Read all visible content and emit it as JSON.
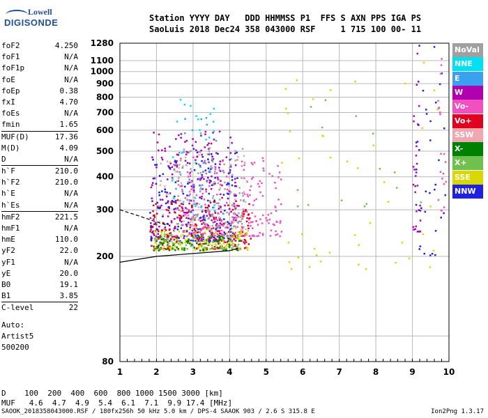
{
  "logo": {
    "line1": "Lowell",
    "line2": "DIGISONDE"
  },
  "header": {
    "row1": "Station YYYY DAY   DDD HHMMSS P1  FFS S AXN PPS IGA PS",
    "row2": "SaoLuis 2018 Dec24 358 043000 RSF     1 715 100 00- 11"
  },
  "params": [
    {
      "k": "foF2",
      "v": "4.250"
    },
    {
      "k": "foF1",
      "v": "N/A"
    },
    {
      "k": "foF1p",
      "v": "N/A"
    },
    {
      "k": "foE",
      "v": "N/A"
    },
    {
      "k": "foEp",
      "v": "0.38"
    },
    {
      "k": "fxI",
      "v": "4.70"
    },
    {
      "k": "foEs",
      "v": "N/A"
    },
    {
      "k": "fmin",
      "v": "1.65"
    },
    {
      "k": "MUF(D)",
      "v": "17.36",
      "sep": true
    },
    {
      "k": "M(D)",
      "v": "4.09"
    },
    {
      "k": "D",
      "v": "N/A"
    },
    {
      "k": "h`F",
      "v": "210.0",
      "sep": true
    },
    {
      "k": "h`F2",
      "v": "210.0"
    },
    {
      "k": "h`E",
      "v": "N/A"
    },
    {
      "k": "h`Es",
      "v": "N/A"
    },
    {
      "k": "hmF2",
      "v": "221.5",
      "sep": true
    },
    {
      "k": "hmF1",
      "v": "N/A"
    },
    {
      "k": "hmE",
      "v": "110.0"
    },
    {
      "k": "yF2",
      "v": "22.0"
    },
    {
      "k": "yF1",
      "v": "N/A"
    },
    {
      "k": "yE",
      "v": "20.0"
    },
    {
      "k": "B0",
      "v": "19.1"
    },
    {
      "k": "B1",
      "v": "3.85"
    },
    {
      "k": "C-level",
      "v": "22",
      "sep": true
    }
  ],
  "auto": {
    "l1": "Auto:",
    "l2": "Artist5",
    "l3": "500200"
  },
  "legend": [
    {
      "label": "NoVal",
      "color": "#a0a0a0"
    },
    {
      "label": "NNE",
      "color": "#00e0f0"
    },
    {
      "label": "E",
      "color": "#3aa0f0"
    },
    {
      "label": "W",
      "color": "#b000b0"
    },
    {
      "label": "Vo-",
      "color": "#f050c0"
    },
    {
      "label": "Vo+",
      "color": "#e00020"
    },
    {
      "label": "SSW",
      "color": "#f0a8b0"
    },
    {
      "label": "X-",
      "color": "#008000"
    },
    {
      "label": "X+",
      "color": "#70c050"
    },
    {
      "label": "SSE",
      "color": "#d8d800"
    },
    {
      "label": "NNW",
      "color": "#2020e0"
    }
  ],
  "chart_data": {
    "type": "scatter",
    "xlim": [
      1,
      10
    ],
    "ylim": [
      80,
      1280
    ],
    "y_scale": "log",
    "grid": true,
    "x_ticks": [
      1,
      2,
      3,
      4,
      5,
      6,
      7,
      8,
      9,
      10
    ],
    "y_ticks": [
      80,
      100,
      200,
      300,
      400,
      500,
      600,
      700,
      800,
      900,
      1000,
      1100,
      1280
    ],
    "y_tick_labels": [
      "80",
      "",
      "200",
      "300",
      "400",
      "500",
      "600",
      "700",
      "800",
      "900",
      "1000",
      "1100",
      "1280"
    ],
    "clusters": [
      {
        "series": "W",
        "x": [
          1.8,
          4.2
        ],
        "y": [
          230,
          600
        ],
        "n": 260
      },
      {
        "series": "NNW",
        "x": [
          1.8,
          4.2
        ],
        "y": [
          230,
          520
        ],
        "n": 200
      },
      {
        "series": "Vo+",
        "x": [
          1.8,
          4.6
        ],
        "y": [
          215,
          330
        ],
        "n": 200
      },
      {
        "series": "Vo-",
        "x": [
          2.5,
          5.4
        ],
        "y": [
          240,
          480
        ],
        "n": 220
      },
      {
        "series": "SSE",
        "x": [
          1.9,
          4.5
        ],
        "y": [
          212,
          260
        ],
        "n": 140
      },
      {
        "series": "X-",
        "x": [
          1.9,
          4.3
        ],
        "y": [
          212,
          240
        ],
        "n": 70
      },
      {
        "series": "X+",
        "x": [
          1.9,
          4.3
        ],
        "y": [
          215,
          245
        ],
        "n": 60
      },
      {
        "series": "NoVal",
        "x": [
          2.4,
          4.4
        ],
        "y": [
          260,
          520
        ],
        "n": 120
      },
      {
        "series": "SSW",
        "x": [
          2.0,
          4.5
        ],
        "y": [
          250,
          500
        ],
        "n": 80
      },
      {
        "series": "NNE",
        "x": [
          2.4,
          3.6
        ],
        "y": [
          300,
          800
        ],
        "n": 30
      },
      {
        "series": "E",
        "x": [
          2.4,
          3.8
        ],
        "y": [
          280,
          700
        ],
        "n": 30
      },
      {
        "series": "W",
        "x": [
          9.0,
          9.2
        ],
        "y": [
          250,
          1250
        ],
        "n": 30
      },
      {
        "series": "NNW",
        "x": [
          9.0,
          9.9
        ],
        "y": [
          200,
          1280
        ],
        "n": 35
      },
      {
        "series": "Vo-",
        "x": [
          9.6,
          9.9
        ],
        "y": [
          300,
          1200
        ],
        "n": 20
      },
      {
        "series": "SSE",
        "x": [
          5.4,
          9.9
        ],
        "y": [
          180,
          1100
        ],
        "n": 45
      },
      {
        "series": "X+",
        "x": [
          5.5,
          9.3
        ],
        "y": [
          300,
          800
        ],
        "n": 15
      }
    ],
    "traces": [
      {
        "name": "ordinary",
        "style": "solid",
        "x": [
          1,
          2,
          3,
          4,
          4.25
        ],
        "y": [
          190,
          200,
          205,
          210,
          215
        ]
      },
      {
        "name": "extraordinary",
        "style": "dashed",
        "x": [
          1,
          1.5,
          2,
          2.3
        ],
        "y": [
          300,
          285,
          270,
          262
        ]
      }
    ]
  },
  "freq_table": {
    "row1": "D    100  200  400  600  800 1000 1500 3000 [km]",
    "row2": "MUF   4.6  4.7  4.9  5.4  6.1  7.1  9.9 17.4 [MHz]"
  },
  "footer": {
    "left": "SAOOK_2018358043000.RSF / 180fx256h 50 kHz 5.0 km / DPS-4 SAAOK 903 / 2.6 S 315.8 E",
    "right": "Ion2Png 1.3.17"
  }
}
